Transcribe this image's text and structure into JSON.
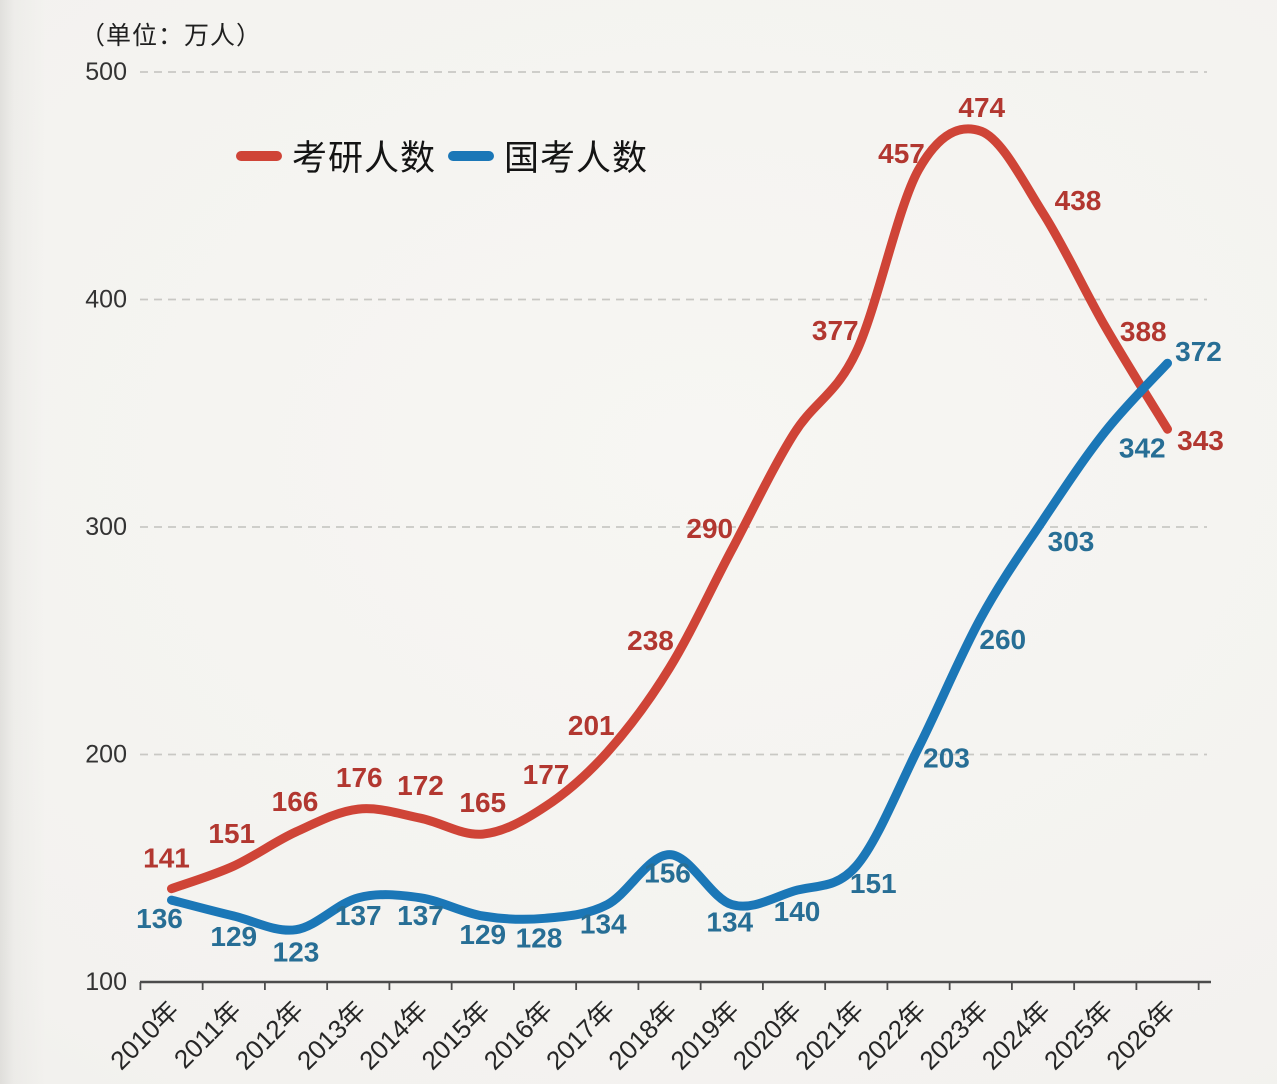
{
  "unit_label": "（单位：万人）",
  "legend": {
    "items": [
      {
        "id": "kaoyan",
        "label": "考研人数",
        "color": "#cf4437"
      },
      {
        "id": "guokao",
        "label": "国考人数",
        "color": "#1b77b7"
      }
    ]
  },
  "chart_data": {
    "type": "line",
    "title": "",
    "unit_note": "（单位：万人）",
    "x": [
      "2010年",
      "2011年",
      "2012年",
      "2013年",
      "2014年",
      "2015年",
      "2016年",
      "2017年",
      "2018年",
      "2019年",
      "2020年",
      "2021年",
      "2022年",
      "2023年",
      "2024年",
      "2025年",
      "2026年"
    ],
    "series": [
      {
        "name": "考研人数",
        "color": "#cf4437",
        "label_color": "#b23730",
        "values": [
          141,
          151,
          166,
          176,
          172,
          165,
          177,
          201,
          238,
          290,
          341,
          377,
          457,
          474,
          438,
          388,
          343
        ],
        "labels": [
          "141",
          "151",
          "166",
          "176",
          "172",
          "165",
          "177",
          "201",
          "238",
          "290",
          null,
          "377",
          "457",
          "474",
          "438",
          "388",
          "343"
        ],
        "label_offsets": [
          [
            -5,
            -30
          ],
          [
            -2,
            -32
          ],
          [
            -1,
            -30
          ],
          [
            1,
            -31
          ],
          [
            0,
            -32
          ],
          [
            0,
            -31
          ],
          [
            1,
            -32
          ],
          [
            -16,
            -26
          ],
          [
            -19,
            -27
          ],
          [
            -22,
            -21
          ],
          [
            0,
            0
          ],
          [
            -21,
            -21
          ],
          [
            -17,
            -16
          ],
          [
            1,
            -23
          ],
          [
            35,
            -12
          ],
          [
            38,
            5
          ],
          [
            33,
            12
          ]
        ]
      },
      {
        "name": "国考人数",
        "color": "#1b77b7",
        "label_color": "#276e95",
        "values": [
          136,
          129,
          123,
          137,
          137,
          129,
          128,
          134,
          156,
          134,
          140,
          151,
          203,
          260,
          303,
          342,
          372
        ],
        "labels": [
          "136",
          "129",
          "123",
          "137",
          "137",
          "129",
          "128",
          "134",
          "156",
          "134",
          "140",
          "151",
          "203",
          "260",
          "303",
          "342",
          "372"
        ],
        "label_offsets": [
          [
            -12,
            19
          ],
          [
            0,
            21
          ],
          [
            0,
            23
          ],
          [
            0,
            18
          ],
          [
            0,
            18
          ],
          [
            0,
            19
          ],
          [
            -6,
            20
          ],
          [
            -4,
            20
          ],
          [
            -2,
            19
          ],
          [
            -2,
            18
          ],
          [
            3,
            21
          ],
          [
            17,
            18
          ],
          [
            28,
            11
          ],
          [
            22,
            22
          ],
          [
            28,
            22
          ],
          [
            37,
            17
          ],
          [
            31,
            -11
          ]
        ]
      }
    ],
    "yticks": [
      100,
      200,
      300,
      400,
      500
    ],
    "ylim": [
      100,
      500
    ],
    "grid": "dashed-horizontal",
    "legend_position": "top-inside-left",
    "line_width": 9
  }
}
